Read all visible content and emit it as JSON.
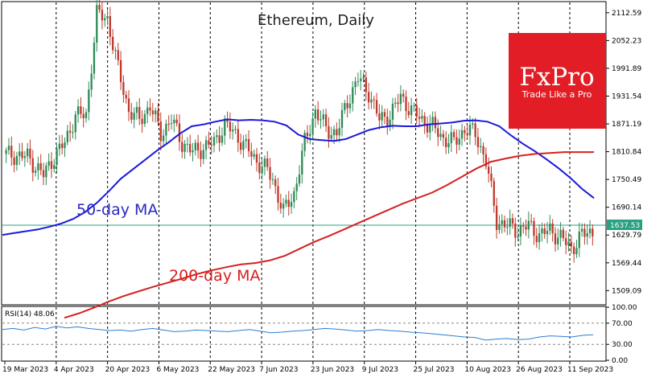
{
  "chart_data": {
    "type": "candlestick",
    "title": "Ethereum, Daily",
    "y_ticks": [
      "2112.59",
      "2052.23",
      "1991.89",
      "1931.54",
      "1871.19",
      "1810.84",
      "1750.49",
      "1690.14",
      "1629.79",
      "1569.44",
      "1509.09"
    ],
    "x_ticks": [
      "19 Mar 2023",
      "4 Apr 2023",
      "20 Apr 2023",
      "6 May 2023",
      "22 May 2023",
      "7 Jun 2023",
      "23 Jun 2023",
      "9 Jul 2023",
      "25 Jul 2023",
      "10 Aug 2023",
      "26 Aug 2023",
      "11 Sep 2023"
    ],
    "ylim": [
      1480,
      2135
    ],
    "current_price": "1637.53",
    "series": [
      {
        "name": "50-day MA",
        "color": "#1a1adb",
        "values": [
          1630,
          1634,
          1638,
          1642,
          1648,
          1655,
          1665,
          1680,
          1700,
          1725,
          1752,
          1772,
          1792,
          1812,
          1830,
          1850,
          1866,
          1870,
          1876,
          1881,
          1879,
          1880,
          1879,
          1876,
          1868,
          1848,
          1838,
          1836,
          1834,
          1838,
          1848,
          1858,
          1864,
          1867,
          1866,
          1866,
          1870,
          1872,
          1874,
          1878,
          1879,
          1876,
          1866,
          1846,
          1828,
          1812,
          1794,
          1775,
          1754,
          1730,
          1710
        ]
      },
      {
        "name": "200-day MA",
        "color": "#d62020",
        "values": [
          1450,
          1460,
          1472,
          1485,
          1497,
          1507,
          1517,
          1526,
          1535,
          1545,
          1553,
          1560,
          1566,
          1569,
          1575,
          1585,
          1600,
          1615,
          1628,
          1642,
          1656,
          1670,
          1684,
          1698,
          1710,
          1722,
          1738,
          1756,
          1774,
          1789,
          1796,
          1802,
          1806,
          1808,
          1810,
          1810,
          1810
        ]
      }
    ],
    "rsi": {
      "label": "RSI(14) 48.06",
      "ticks": [
        "100.00",
        "70.00",
        "30.00",
        "0.00"
      ],
      "values": [
        58,
        60,
        57,
        62,
        59,
        64,
        61,
        63,
        60,
        58,
        56,
        57,
        55,
        58,
        60,
        57,
        54,
        55,
        57,
        56,
        55,
        54,
        56,
        58,
        55,
        52,
        53,
        55,
        56,
        58,
        60,
        59,
        57,
        55,
        56,
        58,
        56,
        55,
        53,
        52,
        50,
        48,
        46,
        44,
        43,
        38,
        40,
        41,
        39,
        40,
        44,
        46,
        45,
        44,
        47,
        48
      ]
    }
  }
}
